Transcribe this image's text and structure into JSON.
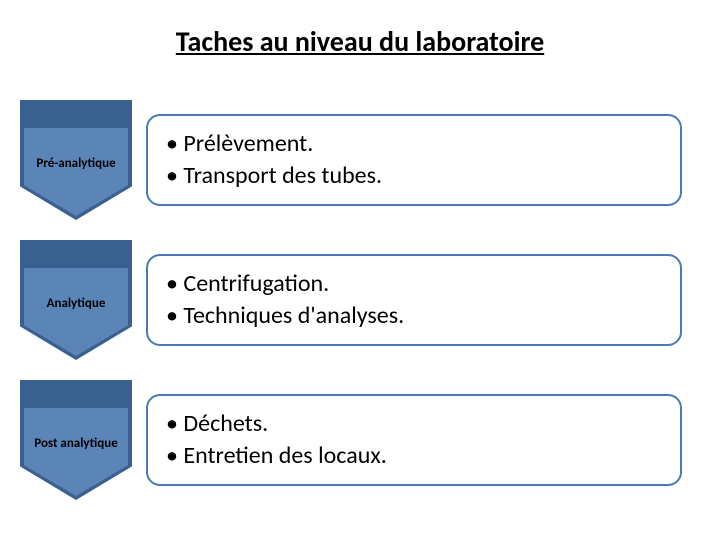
{
  "title": "Taches au niveau du laboratoire",
  "colors": {
    "chevron_outer": "#39608f",
    "chevron_inner": "#5b85b7",
    "chevron_text": "#000000",
    "box_border": "#4a7ab2",
    "box_bg": "#ffffff",
    "text": "#000000",
    "title_fontsize": 28,
    "label_fontsize": 13,
    "bullet_fontsize": 24
  },
  "stages": [
    {
      "label": "Pré-analytique",
      "bullets": [
        "Prélèvement.",
        "Transport des tubes."
      ]
    },
    {
      "label": "Analytique",
      "bullets": [
        "Centrifugation.",
        "Techniques d'analyses."
      ]
    },
    {
      "label": "Post analytique",
      "bullets": [
        "Déchets.",
        "Entretien des locaux."
      ]
    }
  ]
}
